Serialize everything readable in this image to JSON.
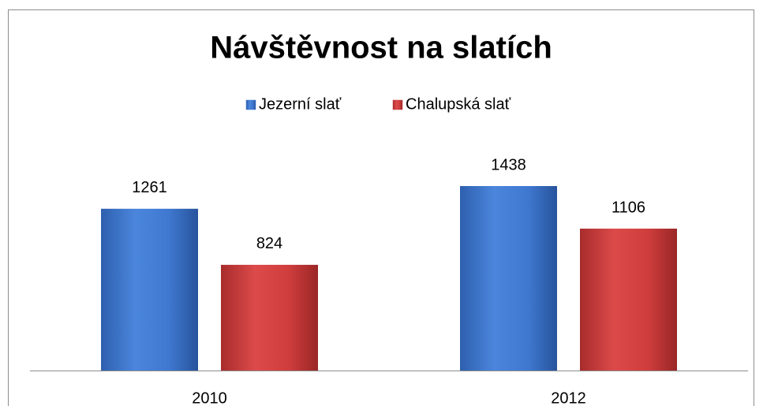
{
  "chart_data": {
    "type": "bar",
    "title": "Návštěvnost na slatích",
    "categories": [
      "2010",
      "2012"
    ],
    "series": [
      {
        "name": "Jezerní slať",
        "color": "#3f78d0",
        "values": [
          1261,
          1438
        ]
      },
      {
        "name": "Chalupská slať",
        "color": "#cf3d3d",
        "values": [
          824,
          1106
        ]
      }
    ],
    "legend": "top"
  }
}
